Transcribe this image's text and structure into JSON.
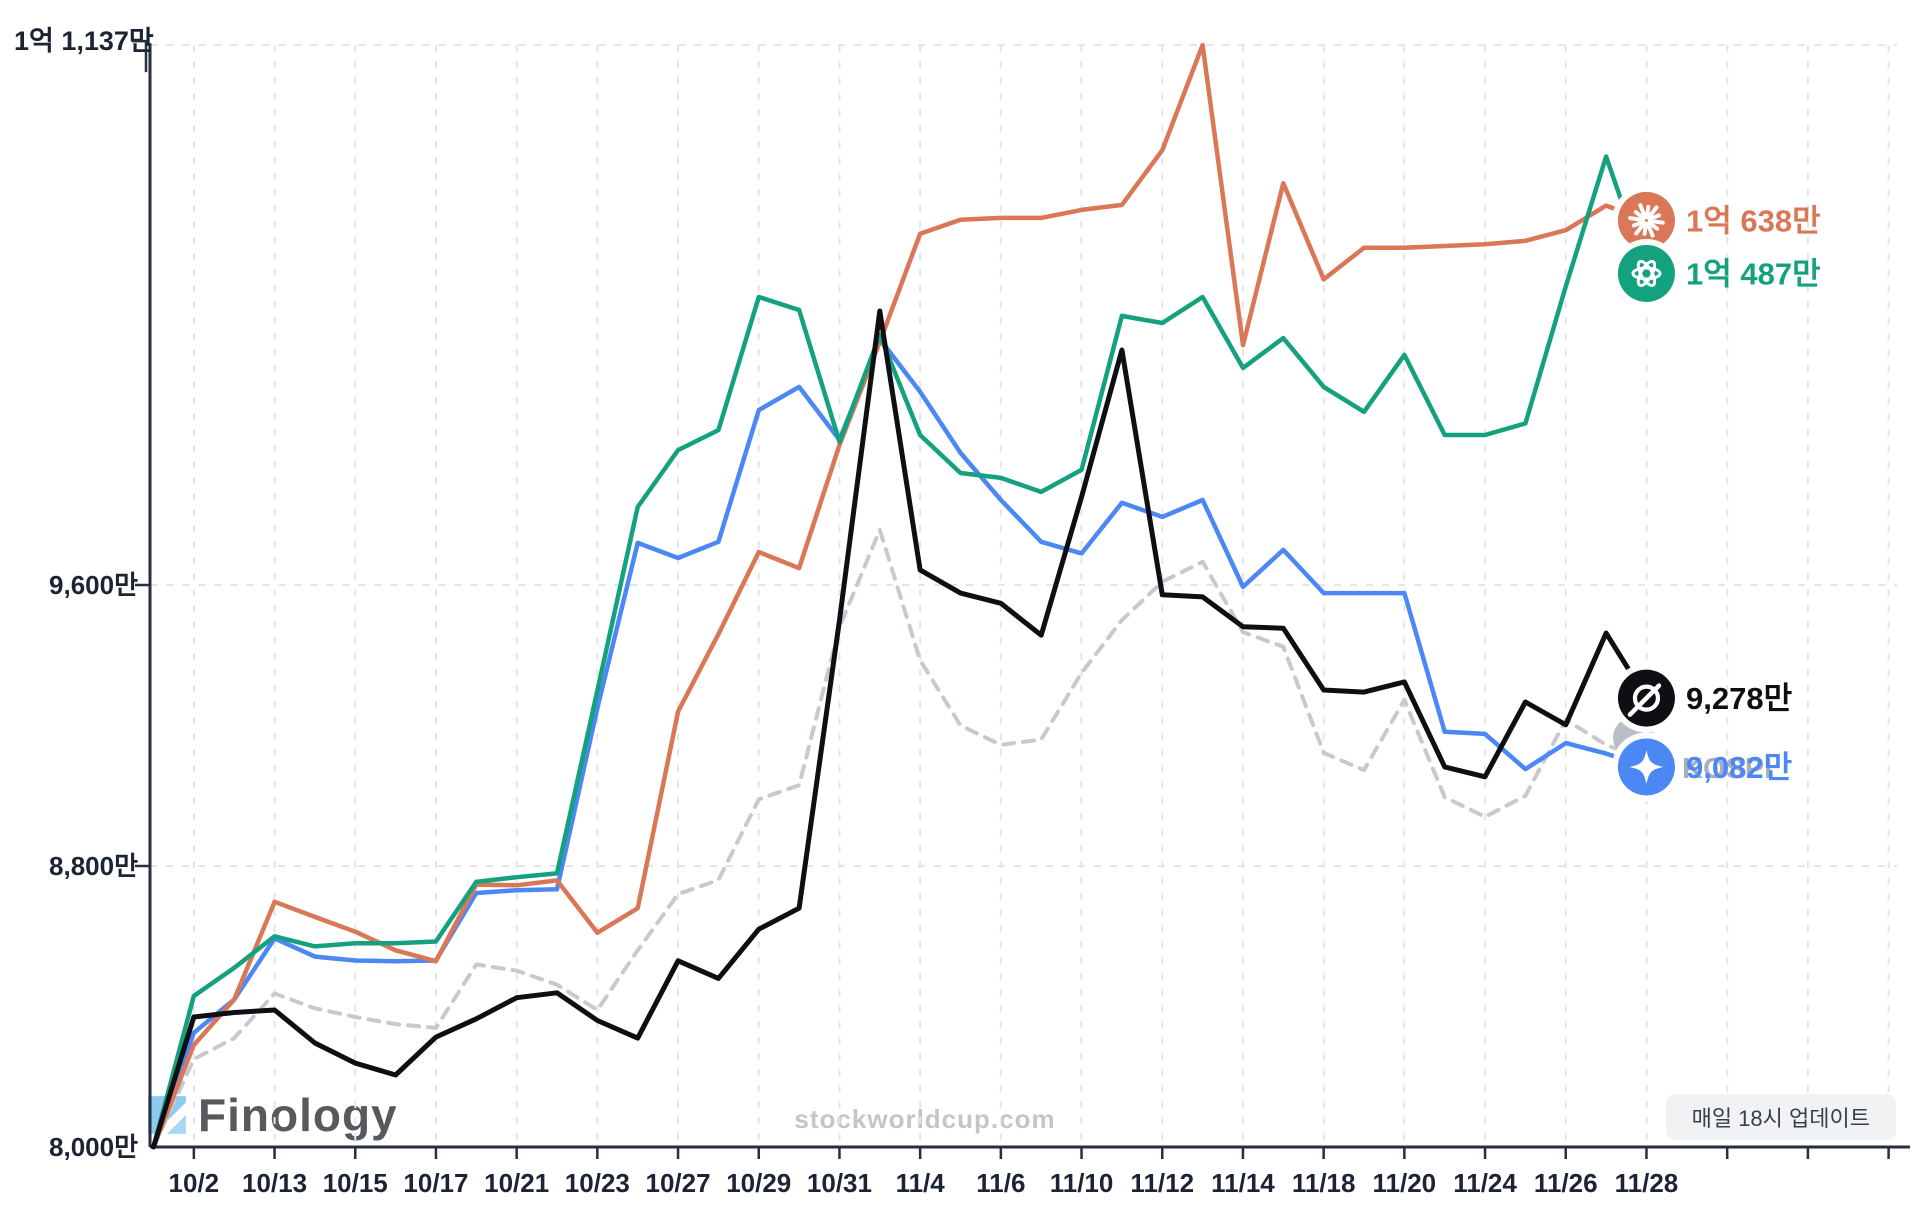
{
  "chart": {
    "type": "line",
    "y_max_label": {
      "label": "1억 1,137만",
      "value": 11137
    },
    "y_ticks": [
      {
        "label": "9,600만",
        "value": 9600
      },
      {
        "label": "8,800만",
        "value": 8800
      },
      {
        "label": "8,000만",
        "value": 8000
      }
    ],
    "ylim": [
      8000,
      11137
    ],
    "grid": "dashed",
    "legend_position": "line-end-icons-right",
    "x_labels": [
      "10/2",
      "10/13",
      "10/15",
      "10/17",
      "10/21",
      "10/23",
      "10/27",
      "10/29",
      "10/31",
      "11/4",
      "11/6",
      "11/10",
      "11/12",
      "11/14",
      "11/18",
      "11/20",
      "11/24",
      "11/26",
      "11/28"
    ],
    "dates": [
      "10/1",
      "10/2",
      "10/10",
      "10/13",
      "10/14",
      "10/15",
      "10/16",
      "10/17",
      "10/20",
      "10/21",
      "10/22",
      "10/23",
      "10/24",
      "10/27",
      "10/28",
      "10/29",
      "10/30",
      "10/31",
      "11/3",
      "11/4",
      "11/5",
      "11/6",
      "11/7",
      "11/10",
      "11/11",
      "11/12",
      "11/13",
      "11/14",
      "11/17",
      "11/18",
      "11/19",
      "11/20",
      "11/21",
      "11/24",
      "11/25",
      "11/26",
      "11/27",
      "11/28"
    ],
    "series": [
      {
        "name": "Claude",
        "icon": "claude-starburst-icon",
        "color": "#d97757",
        "style": "solid",
        "end_label": "1억 638만",
        "end_value": 10638,
        "values": [
          8000,
          8290,
          8420,
          8698,
          8655,
          8613,
          8560,
          8529,
          8747,
          8745,
          8759,
          8610,
          8680,
          9240,
          9460,
          9694,
          9648,
          9999,
          10292,
          10600,
          10640,
          10645,
          10645,
          10668,
          10682,
          10838,
          11137,
          10283,
          10744,
          10470,
          10560,
          10560,
          10565,
          10570,
          10580,
          10610,
          10680,
          10638
        ]
      },
      {
        "name": "ChatGPT",
        "icon": "openai-icon",
        "color": "#14a17e",
        "style": "solid",
        "end_label": "1억 487만",
        "end_value": 10487,
        "values": [
          8000,
          8430,
          8510,
          8600,
          8571,
          8580,
          8580,
          8585,
          8755,
          8768,
          8779,
          9300,
          9822,
          9984,
          10041,
          10420,
          10383,
          10007,
          10312,
          10027,
          9919,
          9905,
          9865,
          9928,
          10366,
          10346,
          10420,
          10218,
          10303,
          10164,
          10093,
          10255,
          10027,
          10027,
          10060,
          10450,
          10820,
          10487
        ]
      },
      {
        "name": "Grok",
        "icon": "grok-icon",
        "color": "#0e0f12",
        "style": "solid",
        "end_label": "9,278만",
        "end_value": 9278,
        "values": [
          8000,
          8370,
          8383,
          8390,
          8296,
          8239,
          8205,
          8313,
          8365,
          8425,
          8439,
          8360,
          8310,
          8530,
          8480,
          8620,
          8680,
          9500,
          10380,
          9643,
          9577,
          9548,
          9457,
          9851,
          10269,
          9572,
          9566,
          9481,
          9477,
          9301,
          9295,
          9324,
          9082,
          9054,
          9267,
          9202,
          9463,
          9278
        ]
      },
      {
        "name": "Gemini",
        "icon": "gemini-icon",
        "color": "#4b87f5",
        "style": "solid",
        "end_label": "9,082만",
        "end_value": 9082,
        "values": [
          8000,
          8325,
          8420,
          8594,
          8542,
          8531,
          8529,
          8531,
          8723,
          8731,
          8734,
          9250,
          9720,
          9677,
          9723,
          10098,
          10164,
          10013,
          10300,
          10150,
          9976,
          9842,
          9723,
          9690,
          9834,
          9794,
          9842,
          9595,
          9700,
          9577,
          9577,
          9577,
          9182,
          9176,
          9076,
          9150,
          9120,
          9082
        ]
      },
      {
        "name": "KOSPI",
        "icon": "kospi-icon",
        "color": "#c6c9cf",
        "style": "dashed",
        "end_label": "KOSPI",
        "end_value": 9100,
        "label_partially_hidden": true,
        "values": [
          8000,
          8250,
          8310,
          8437,
          8395,
          8370,
          8350,
          8339,
          8520,
          8502,
          8462,
          8390,
          8560,
          8720,
          8760,
          8990,
          9030,
          9480,
          9757,
          9386,
          9200,
          9145,
          9160,
          9350,
          9500,
          9609,
          9666,
          9466,
          9424,
          9122,
          9073,
          9273,
          8996,
          8940,
          9000,
          9216,
          9145,
          9100
        ]
      }
    ]
  },
  "branding": {
    "logo_text": "Finology",
    "watermark": "stockworldcup.com"
  },
  "badge": {
    "text": "매일 18시 업데이트"
  },
  "ui_colors": {
    "text": "#1c2434",
    "axis": "#272e3f",
    "grid": "#e3e5e9",
    "background": "#ffffff",
    "badge_bg": "#f1f2f4",
    "watermark": "#c2c6cc",
    "logo_blue": "#8ccaf0"
  }
}
